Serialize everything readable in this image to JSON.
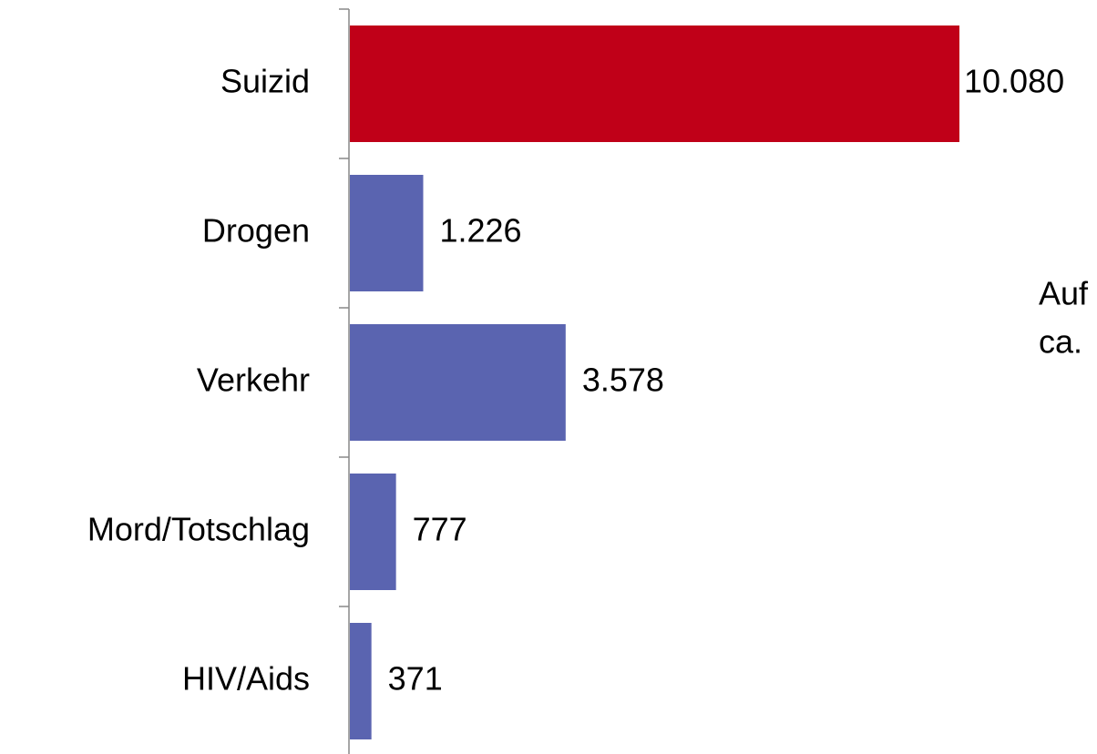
{
  "chart_data": {
    "type": "hbar",
    "categories": [
      "Suizid",
      "Drogen",
      "Verkehr",
      "Mord/Totschlag",
      "HIV/Aids"
    ],
    "values": [
      10080,
      1226,
      3578,
      777,
      371
    ],
    "value_labels": [
      "10.080",
      "1.226",
      "3.578",
      "777",
      "371"
    ],
    "colors": [
      "#c00018",
      "#5a64b0",
      "#5a64b0",
      "#5a64b0",
      "#5a64b0"
    ],
    "annotations": [
      "Auf",
      "ca."
    ]
  }
}
